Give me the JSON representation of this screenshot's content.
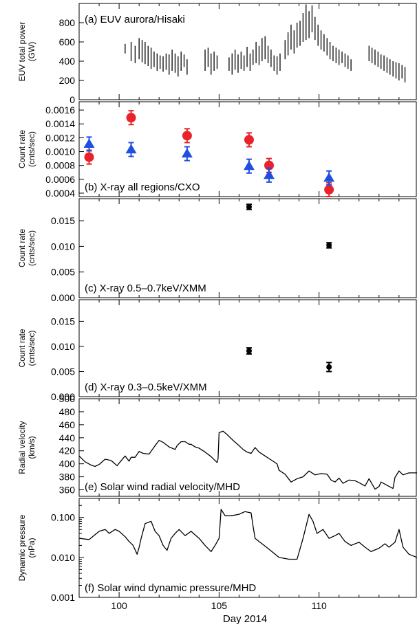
{
  "figure": {
    "xlabel": "Day 2014"
  },
  "chart_data": [
    {
      "id": "a",
      "type": "bar",
      "title": "(a) EUV aurora/Hisaki",
      "ylabel_lines": [
        "EUV total power",
        "(GW)"
      ],
      "xlim": [
        98,
        114.9
      ],
      "ylim": [
        0,
        1000
      ],
      "yticks": [
        0,
        200,
        400,
        600,
        800
      ],
      "x_ticks": [
        100,
        105,
        110
      ],
      "style": {
        "color": "#000000"
      },
      "segments": [
        {
          "x": 100.3,
          "lo": 480,
          "hi": 580
        },
        {
          "x": 100.6,
          "lo": 400,
          "hi": 600
        },
        {
          "x": 100.8,
          "lo": 380,
          "hi": 560
        },
        {
          "x": 101.0,
          "lo": 420,
          "hi": 640
        },
        {
          "x": 101.15,
          "lo": 390,
          "hi": 620
        },
        {
          "x": 101.3,
          "lo": 370,
          "hi": 600
        },
        {
          "x": 101.45,
          "lo": 350,
          "hi": 560
        },
        {
          "x": 101.6,
          "lo": 320,
          "hi": 540
        },
        {
          "x": 101.75,
          "lo": 340,
          "hi": 500
        },
        {
          "x": 101.9,
          "lo": 300,
          "hi": 480
        },
        {
          "x": 102.05,
          "lo": 320,
          "hi": 460
        },
        {
          "x": 102.2,
          "lo": 290,
          "hi": 450
        },
        {
          "x": 102.35,
          "lo": 310,
          "hi": 480
        },
        {
          "x": 102.5,
          "lo": 260,
          "hi": 470
        },
        {
          "x": 102.65,
          "lo": 300,
          "hi": 520
        },
        {
          "x": 102.8,
          "lo": 280,
          "hi": 480
        },
        {
          "x": 102.95,
          "lo": 240,
          "hi": 450
        },
        {
          "x": 103.1,
          "lo": 300,
          "hi": 500
        },
        {
          "x": 103.25,
          "lo": 340,
          "hi": 470
        },
        {
          "x": 103.4,
          "lo": 260,
          "hi": 420
        },
        {
          "x": 104.3,
          "lo": 300,
          "hi": 520
        },
        {
          "x": 104.45,
          "lo": 340,
          "hi": 540
        },
        {
          "x": 104.6,
          "lo": 260,
          "hi": 480
        },
        {
          "x": 104.75,
          "lo": 300,
          "hi": 500
        },
        {
          "x": 104.9,
          "lo": 320,
          "hi": 460
        },
        {
          "x": 105.5,
          "lo": 300,
          "hi": 440
        },
        {
          "x": 105.65,
          "lo": 260,
          "hi": 480
        },
        {
          "x": 105.8,
          "lo": 310,
          "hi": 520
        },
        {
          "x": 105.95,
          "lo": 280,
          "hi": 470
        },
        {
          "x": 106.1,
          "lo": 320,
          "hi": 500
        },
        {
          "x": 106.25,
          "lo": 300,
          "hi": 460
        },
        {
          "x": 106.4,
          "lo": 340,
          "hi": 550
        },
        {
          "x": 106.55,
          "lo": 300,
          "hi": 480
        },
        {
          "x": 106.7,
          "lo": 360,
          "hi": 520
        },
        {
          "x": 106.85,
          "lo": 380,
          "hi": 600
        },
        {
          "x": 107.0,
          "lo": 360,
          "hi": 560
        },
        {
          "x": 107.15,
          "lo": 400,
          "hi": 640
        },
        {
          "x": 107.3,
          "lo": 420,
          "hi": 660
        },
        {
          "x": 107.45,
          "lo": 380,
          "hi": 560
        },
        {
          "x": 107.6,
          "lo": 340,
          "hi": 520
        },
        {
          "x": 107.75,
          "lo": 300,
          "hi": 460
        },
        {
          "x": 107.9,
          "lo": 260,
          "hi": 450
        },
        {
          "x": 108.05,
          "lo": 300,
          "hi": 480
        },
        {
          "x": 108.3,
          "lo": 420,
          "hi": 620
        },
        {
          "x": 108.45,
          "lo": 460,
          "hi": 700
        },
        {
          "x": 108.6,
          "lo": 520,
          "hi": 780
        },
        {
          "x": 108.75,
          "lo": 480,
          "hi": 720
        },
        {
          "x": 108.9,
          "lo": 540,
          "hi": 800
        },
        {
          "x": 109.05,
          "lo": 560,
          "hi": 820
        },
        {
          "x": 109.2,
          "lo": 600,
          "hi": 900
        },
        {
          "x": 109.35,
          "lo": 620,
          "hi": 990
        },
        {
          "x": 109.5,
          "lo": 640,
          "hi": 920
        },
        {
          "x": 109.65,
          "lo": 700,
          "hi": 980
        },
        {
          "x": 109.8,
          "lo": 620,
          "hi": 860
        },
        {
          "x": 109.95,
          "lo": 560,
          "hi": 780
        },
        {
          "x": 110.1,
          "lo": 520,
          "hi": 720
        },
        {
          "x": 110.25,
          "lo": 500,
          "hi": 680
        },
        {
          "x": 110.4,
          "lo": 460,
          "hi": 640
        },
        {
          "x": 110.55,
          "lo": 420,
          "hi": 600
        },
        {
          "x": 110.7,
          "lo": 400,
          "hi": 560
        },
        {
          "x": 110.85,
          "lo": 380,
          "hi": 540
        },
        {
          "x": 111.0,
          "lo": 360,
          "hi": 520
        },
        {
          "x": 111.15,
          "lo": 380,
          "hi": 500
        },
        {
          "x": 111.3,
          "lo": 340,
          "hi": 480
        },
        {
          "x": 111.45,
          "lo": 320,
          "hi": 460
        },
        {
          "x": 111.6,
          "lo": 300,
          "hi": 420
        },
        {
          "x": 112.5,
          "lo": 400,
          "hi": 560
        },
        {
          "x": 112.65,
          "lo": 380,
          "hi": 540
        },
        {
          "x": 112.8,
          "lo": 360,
          "hi": 520
        },
        {
          "x": 112.95,
          "lo": 340,
          "hi": 500
        },
        {
          "x": 113.1,
          "lo": 320,
          "hi": 470
        },
        {
          "x": 113.25,
          "lo": 300,
          "hi": 460
        },
        {
          "x": 113.4,
          "lo": 280,
          "hi": 440
        },
        {
          "x": 113.55,
          "lo": 260,
          "hi": 420
        },
        {
          "x": 113.7,
          "lo": 240,
          "hi": 400
        },
        {
          "x": 113.85,
          "lo": 220,
          "hi": 390
        },
        {
          "x": 114.0,
          "lo": 200,
          "hi": 380
        },
        {
          "x": 114.15,
          "lo": 220,
          "hi": 360
        },
        {
          "x": 114.3,
          "lo": 180,
          "hi": 340
        }
      ]
    },
    {
      "id": "b",
      "type": "scatter",
      "title": "(b) X-ray all regions/CXO",
      "ylabel_lines": [
        "Count rate",
        "(cnts/sec)"
      ],
      "xlim": [
        98,
        114.9
      ],
      "ylim": [
        0.00035,
        0.00172
      ],
      "yticks": [
        0.0004,
        0.0006,
        0.0008,
        0.001,
        0.0012,
        0.0014,
        0.0016
      ],
      "ytick_labels": [
        "0.0004",
        "0.0006",
        "0.0008",
        "0.0010",
        "0.0012",
        "0.0014",
        "0.0016"
      ],
      "x_ticks": [
        100,
        105,
        110
      ],
      "series": [
        {
          "marker": "circle",
          "color": "#e8232a",
          "points": [
            {
              "x": 98.5,
              "y": 0.00092,
              "err": 0.0001
            },
            {
              "x": 100.6,
              "y": 0.00149,
              "err": 0.0001
            },
            {
              "x": 103.4,
              "y": 0.00123,
              "err": 0.0001
            },
            {
              "x": 106.5,
              "y": 0.00117,
              "err": 0.0001
            },
            {
              "x": 107.5,
              "y": 0.0008,
              "err": 0.0001
            },
            {
              "x": 110.5,
              "y": 0.00045,
              "err": 0.0001
            }
          ]
        },
        {
          "marker": "triangle",
          "color": "#1f4fe0",
          "points": [
            {
              "x": 98.5,
              "y": 0.00111,
              "err": 0.0001
            },
            {
              "x": 100.6,
              "y": 0.00103,
              "err": 0.0001
            },
            {
              "x": 103.4,
              "y": 0.00097,
              "err": 0.0001
            },
            {
              "x": 106.5,
              "y": 0.00079,
              "err": 0.0001
            },
            {
              "x": 107.5,
              "y": 0.00066,
              "err": 0.0001
            },
            {
              "x": 110.5,
              "y": 0.00062,
              "err": 0.0001
            }
          ]
        }
      ]
    },
    {
      "id": "c",
      "type": "scatter",
      "title": "(c) X-ray 0.5–0.7keV/XMM",
      "ylabel_lines": [
        "Count rate",
        "(cnts/sec)"
      ],
      "xlim": [
        98,
        114.9
      ],
      "ylim": [
        0,
        0.0193
      ],
      "yticks": [
        0.0,
        0.005,
        0.01,
        0.015
      ],
      "ytick_labels": [
        "0.000",
        "0.005",
        "0.010",
        "0.015"
      ],
      "x_ticks": [
        100,
        105,
        110
      ],
      "series": [
        {
          "marker": "circle",
          "color": "#000000",
          "points": [
            {
              "x": 106.5,
              "y": 0.0177,
              "err": 0.0005
            },
            {
              "x": 110.5,
              "y": 0.0102,
              "err": 0.0005
            }
          ]
        }
      ]
    },
    {
      "id": "d",
      "type": "scatter",
      "title": "(d) X-ray 0.3–0.5keV/XMM",
      "ylabel_lines": [
        "Count rate",
        "(cnts/sec)"
      ],
      "xlim": [
        98,
        114.9
      ],
      "ylim": [
        0,
        0.0193
      ],
      "yticks": [
        0.0,
        0.005,
        0.01,
        0.015
      ],
      "ytick_labels": [
        "0.000",
        "0.005",
        "0.010",
        "0.015"
      ],
      "x_ticks": [
        100,
        105,
        110
      ],
      "series": [
        {
          "marker": "circle",
          "color": "#000000",
          "points": [
            {
              "x": 106.5,
              "y": 0.0091,
              "err": 0.0006
            },
            {
              "x": 110.5,
              "y": 0.0059,
              "err": 0.0009
            }
          ]
        }
      ]
    },
    {
      "id": "e",
      "type": "line",
      "title": "(e) Solar wind radial velocity/MHD",
      "ylabel_lines": [
        "Radial velocity",
        "(km/s)"
      ],
      "xlim": [
        98,
        114.9
      ],
      "ylim": [
        350,
        500
      ],
      "yticks": [
        360,
        380,
        400,
        420,
        440,
        460,
        480,
        500
      ],
      "x_ticks": [
        100,
        105,
        110
      ],
      "style": {
        "color": "#000000"
      },
      "x": [
        98.0,
        98.3,
        98.6,
        98.8,
        99.0,
        99.3,
        99.6,
        99.9,
        100.0,
        100.3,
        100.5,
        100.6,
        100.8,
        101.0,
        101.2,
        101.5,
        101.8,
        102.0,
        102.2,
        102.5,
        102.8,
        102.9,
        103.1,
        103.3,
        103.5,
        103.6,
        103.8,
        104.0,
        104.3,
        104.6,
        104.9,
        104.95,
        105.0,
        105.2,
        105.4,
        105.7,
        106.0,
        106.2,
        106.4,
        106.6,
        106.8,
        107.0,
        107.3,
        107.6,
        107.9,
        108.0,
        108.3,
        108.6,
        108.9,
        109.2,
        109.5,
        109.8,
        110.1,
        110.4,
        110.6,
        110.8,
        111.0,
        111.2,
        111.5,
        111.8,
        112.0,
        112.3,
        112.5,
        112.8,
        113.0,
        113.1,
        113.4,
        113.7,
        113.8,
        114.0,
        114.2,
        114.5,
        114.9
      ],
      "values": [
        412,
        403,
        398,
        396,
        399,
        407,
        405,
        397,
        401,
        412,
        404,
        410,
        410,
        419,
        416,
        415,
        428,
        436,
        433,
        426,
        422,
        428,
        434,
        434,
        430,
        430,
        426,
        424,
        418,
        411,
        402,
        408,
        448,
        450,
        445,
        436,
        428,
        422,
        418,
        416,
        425,
        418,
        412,
        406,
        400,
        390,
        384,
        372,
        377,
        380,
        389,
        383,
        385,
        384,
        375,
        372,
        378,
        370,
        375,
        374,
        371,
        366,
        377,
        361,
        365,
        372,
        367,
        362,
        379,
        389,
        383,
        386,
        386
      ]
    },
    {
      "id": "f",
      "type": "line",
      "title": "(f) Solar wind dynamic pressure/MHD",
      "ylabel_lines": [
        "Dynamic pressure",
        "(nPa)"
      ],
      "xlim": [
        98,
        114.9
      ],
      "ylim": [
        0.001,
        0.3
      ],
      "log_scale_y": true,
      "yticks": [
        0.001,
        0.01,
        0.1
      ],
      "ytick_labels": [
        "0.001",
        "0.010",
        "0.100"
      ],
      "x_ticks": [
        100,
        105,
        110
      ],
      "style": {
        "color": "#000000"
      },
      "x": [
        98.0,
        98.5,
        99.0,
        99.3,
        99.5,
        99.8,
        100.0,
        100.3,
        100.5,
        100.7,
        100.9,
        101.0,
        101.1,
        101.3,
        101.6,
        101.8,
        102.0,
        102.2,
        102.4,
        102.6,
        102.8,
        103.0,
        103.3,
        103.6,
        104.0,
        104.3,
        104.6,
        104.8,
        105.0,
        105.1,
        105.3,
        105.6,
        106.0,
        106.3,
        106.6,
        106.7,
        106.8,
        107.0,
        107.5,
        108.0,
        108.5,
        108.9,
        109.2,
        109.5,
        109.7,
        109.9,
        110.2,
        110.5,
        110.8,
        111.0,
        111.3,
        111.6,
        112.0,
        112.3,
        112.6,
        113.0,
        113.3,
        113.5,
        113.8,
        114.0,
        114.2,
        114.5,
        114.9
      ],
      "values": [
        0.03,
        0.028,
        0.045,
        0.05,
        0.04,
        0.05,
        0.045,
        0.033,
        0.025,
        0.02,
        0.012,
        0.018,
        0.03,
        0.07,
        0.08,
        0.045,
        0.035,
        0.02,
        0.015,
        0.03,
        0.04,
        0.05,
        0.035,
        0.045,
        0.03,
        0.02,
        0.014,
        0.02,
        0.03,
        0.16,
        0.11,
        0.11,
        0.12,
        0.14,
        0.13,
        0.06,
        0.03,
        0.025,
        0.016,
        0.01,
        0.009,
        0.009,
        0.03,
        0.12,
        0.08,
        0.04,
        0.05,
        0.03,
        0.035,
        0.04,
        0.025,
        0.02,
        0.024,
        0.018,
        0.014,
        0.017,
        0.022,
        0.018,
        0.024,
        0.05,
        0.018,
        0.012,
        0.01
      ]
    }
  ]
}
